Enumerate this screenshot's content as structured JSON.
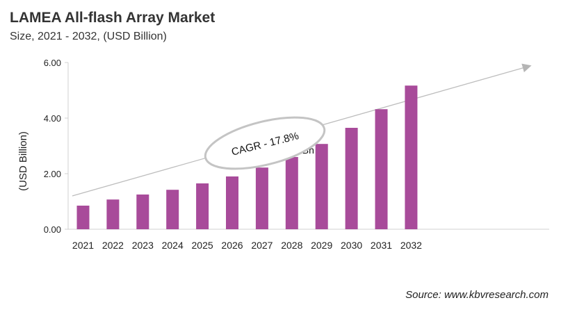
{
  "chart_data": {
    "type": "bar",
    "title": "LAMEA All-flash Array Market",
    "subtitle": "Size, 2021 - 2032, (USD Billion)",
    "xlabel": "",
    "ylabel": "(USD Billion)",
    "categories": [
      "2021",
      "2022",
      "2023",
      "2024",
      "2025",
      "2026",
      "2027",
      "2028",
      "2029",
      "2030",
      "2031",
      "2032"
    ],
    "values": [
      0.85,
      1.07,
      1.25,
      1.42,
      1.65,
      1.9,
      2.22,
      2.6,
      3.07,
      3.65,
      4.32,
      5.17
    ],
    "ylim": [
      0,
      6
    ],
    "yticks": [
      "0.00",
      "2.00",
      "4.00",
      "6.00"
    ],
    "grid": false,
    "bar_color": "#a84b9a",
    "data_labels": [
      {
        "category": "2028",
        "text": "2.60 Bn"
      }
    ],
    "annotation": "CAGR - 17.8%",
    "source": "Source: www.kbvresearch.com"
  }
}
